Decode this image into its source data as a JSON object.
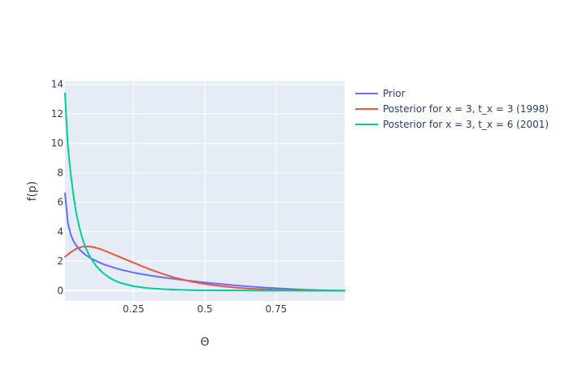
{
  "chart_data": {
    "type": "line",
    "xlabel": "Θ",
    "ylabel": "f(p)",
    "xlim": [
      0.01,
      0.99
    ],
    "ylim": [
      -0.7,
      14.2
    ],
    "x_ticks": [
      0.25,
      0.5,
      0.75
    ],
    "x_tick_labels": [
      "0.25",
      "0.5",
      "0.75"
    ],
    "y_ticks": [
      0,
      2,
      4,
      6,
      8,
      10,
      12,
      14
    ],
    "y_tick_labels": [
      "0",
      "2",
      "4",
      "6",
      "8",
      "10",
      "12",
      "14"
    ],
    "grid": true,
    "legend_position": "top-right, outside plot area",
    "colors": {
      "plot_background": "#E5ECF6",
      "grid": "#FFFFFF",
      "text": "#2a3f5f"
    },
    "series": [
      {
        "name": "Prior",
        "color": "#636EFA",
        "x": [
          0.01,
          0.02,
          0.03,
          0.04,
          0.05,
          0.06,
          0.08,
          0.1,
          0.12,
          0.15,
          0.2,
          0.25,
          0.3,
          0.35,
          0.4,
          0.45,
          0.5,
          0.55,
          0.6,
          0.65,
          0.7,
          0.75,
          0.8,
          0.85,
          0.9,
          0.95,
          0.99
        ],
        "y": [
          6.6,
          4.6,
          3.8,
          3.35,
          3.05,
          2.8,
          2.45,
          2.2,
          2.0,
          1.75,
          1.45,
          1.22,
          1.05,
          0.9,
          0.78,
          0.66,
          0.55,
          0.46,
          0.37,
          0.29,
          0.22,
          0.16,
          0.11,
          0.06,
          0.03,
          0.01,
          0.0
        ]
      },
      {
        "name": "Posterior for x = 3, t_x = 3 (1998)",
        "color": "#EF553B",
        "x": [
          0.01,
          0.03,
          0.05,
          0.07,
          0.09,
          0.11,
          0.13,
          0.15,
          0.2,
          0.25,
          0.3,
          0.35,
          0.4,
          0.45,
          0.5,
          0.55,
          0.6,
          0.65,
          0.7,
          0.75,
          0.8,
          0.85,
          0.9,
          0.95,
          0.99
        ],
        "y": [
          2.3,
          2.6,
          2.85,
          2.98,
          3.0,
          2.95,
          2.85,
          2.7,
          2.3,
          1.9,
          1.5,
          1.15,
          0.85,
          0.62,
          0.45,
          0.32,
          0.22,
          0.14,
          0.09,
          0.05,
          0.03,
          0.01,
          0.0,
          0.0,
          0.0
        ]
      },
      {
        "name": "Posterior for x = 3, t_x = 6 (2001)",
        "color": "#00CC96",
        "x": [
          0.01,
          0.015,
          0.02,
          0.03,
          0.04,
          0.05,
          0.06,
          0.07,
          0.08,
          0.1,
          0.12,
          0.14,
          0.16,
          0.18,
          0.2,
          0.25,
          0.3,
          0.35,
          0.4,
          0.45,
          0.5,
          0.6,
          0.7,
          0.8,
          0.9,
          0.99
        ],
        "y": [
          13.4,
          11.5,
          9.8,
          7.9,
          6.4,
          5.2,
          4.3,
          3.6,
          3.0,
          2.2,
          1.65,
          1.25,
          0.95,
          0.72,
          0.55,
          0.3,
          0.17,
          0.1,
          0.06,
          0.03,
          0.02,
          0.01,
          0.0,
          0.0,
          0.0,
          0.0
        ]
      }
    ]
  }
}
